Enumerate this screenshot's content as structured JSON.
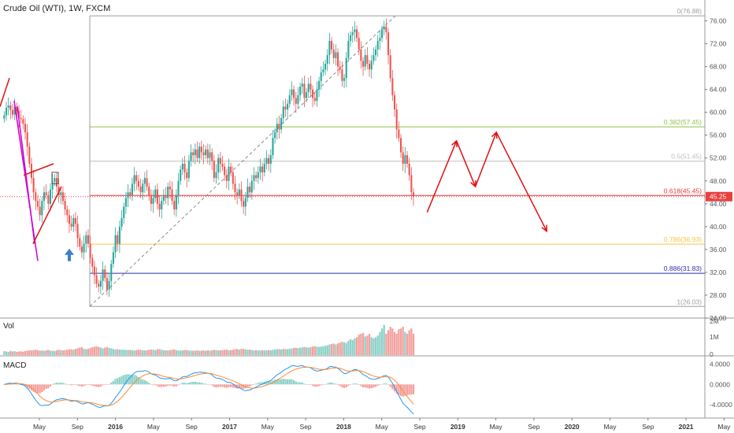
{
  "header": {
    "title": "Crude Oil (WTI), 1W, FXCM"
  },
  "volume_pane": {
    "label": "Vol"
  },
  "macd_pane": {
    "label": "MACD"
  },
  "colors": {
    "up": "#26a69a",
    "down": "#ef5350",
    "up_alpha": "#8dd1c9",
    "down_alpha": "#f3a09d",
    "arrow": "#e01010",
    "pitchfork": "#d000d0",
    "signal_arrow": "#3b7fd0",
    "price_tag": "#e84040",
    "macd_line": "#2196f3",
    "signal_line": "#ff8a30"
  },
  "icons": {
    "signal_arrow": "up-arrow-icon"
  },
  "chart_data": {
    "type": "candlestick",
    "price_axis": {
      "ylim": [
        24,
        78
      ],
      "ticks": [
        "76.00",
        "72.00",
        "68.00",
        "64.00",
        "60.00",
        "56.00",
        "52.00",
        "48.00",
        "44.00",
        "40.00",
        "36.00",
        "32.00",
        "28.00",
        "24.00"
      ]
    },
    "time_axis": {
      "labels": [
        "May",
        "Sep",
        "2016",
        "May",
        "Sep",
        "2017",
        "May",
        "Sep",
        "2018",
        "May",
        "Sep",
        "2019",
        "May",
        "Sep",
        "2020",
        "May",
        "Sep",
        "2021",
        "May"
      ]
    },
    "current_price": "45.25",
    "fib_levels": [
      {
        "label": "0(76.88)",
        "value": 76.88,
        "color": "#9e9e9e"
      },
      {
        "label": "0.382(57.45)",
        "value": 57.45,
        "color": "#8bc34a"
      },
      {
        "label": "0.5(51.45)",
        "value": 51.45,
        "color": "#bdbdbd"
      },
      {
        "label": "0.618(45.45)",
        "value": 45.45,
        "color": "#e53935"
      },
      {
        "label": "0.786(36.93)",
        "value": 36.93,
        "color": "#f6c445"
      },
      {
        "label": "0.886(31.83)",
        "value": 31.83,
        "color": "#2b2bb0"
      },
      {
        "label": "1(26.03)",
        "value": 26.03,
        "color": "#9e9e9e"
      }
    ],
    "weekly_closes": [
      59.5,
      60.8,
      61.2,
      60.4,
      59.6,
      61.0,
      60.2,
      59.0,
      58.8,
      58.0,
      56.5,
      54.0,
      51.0,
      48.5,
      46.0,
      44.5,
      43.5,
      42.0,
      44.5,
      46.0,
      45.5,
      44.0,
      46.5,
      47.8,
      48.5,
      47.0,
      45.5,
      46.0,
      44.5,
      43.0,
      42.0,
      40.5,
      40.0,
      41.5,
      40.5,
      38.0,
      36.5,
      35.5,
      37.0,
      38.5,
      37.0,
      34.5,
      33.0,
      31.5,
      30.0,
      29.5,
      30.5,
      32.5,
      31.0,
      29.0,
      30.5,
      33.5,
      35.5,
      38.5,
      37.0,
      40.0,
      41.5,
      43.5,
      45.0,
      46.0,
      45.5,
      47.5,
      49.0,
      48.0,
      47.0,
      46.0,
      47.5,
      48.5,
      47.0,
      45.5,
      44.0,
      45.0,
      46.5,
      44.0,
      43.0,
      44.5,
      45.5,
      45.0,
      47.0,
      46.5,
      44.5,
      43.0,
      45.5,
      48.0,
      50.0,
      51.0,
      49.5,
      48.5,
      51.5,
      53.0,
      52.5,
      53.5,
      52.0,
      54.0,
      53.0,
      52.5,
      53.5,
      52.0,
      53.0,
      51.5,
      48.5,
      49.5,
      52.0,
      51.0,
      50.5,
      49.0,
      48.0,
      50.5,
      49.5,
      47.5,
      46.0,
      45.5,
      46.5,
      44.5,
      43.5,
      45.0,
      47.0,
      46.0,
      48.0,
      49.0,
      48.5,
      49.5,
      50.5,
      49.5,
      51.0,
      52.0,
      51.0,
      52.5,
      55.5,
      56.5,
      58.0,
      57.0,
      59.0,
      61.0,
      60.5,
      61.5,
      63.0,
      64.0,
      62.5,
      61.5,
      63.0,
      64.5,
      65.0,
      62.5,
      63.5,
      65.0,
      64.0,
      62.5,
      62.0,
      64.0,
      65.5,
      67.0,
      67.5,
      68.5,
      70.0,
      72.5,
      71.0,
      69.5,
      70.5,
      68.0,
      67.5,
      65.5,
      66.0,
      69.5,
      72.5,
      73.5,
      74.0,
      74.5,
      73.0,
      71.0,
      69.0,
      68.0,
      70.0,
      68.5,
      67.5,
      69.0,
      70.0,
      71.0,
      72.5,
      73.0,
      74.5,
      75.0,
      74.0,
      70.0,
      66.0,
      63.0,
      60.5,
      57.0,
      55.5,
      53.0,
      51.0,
      52.5,
      51.0,
      49.0,
      46.0,
      45.25
    ],
    "volume_series": [
      0.22,
      0.2,
      0.18,
      0.24,
      0.2,
      0.22,
      0.18,
      0.2,
      0.21,
      0.19,
      0.23,
      0.25,
      0.27,
      0.26,
      0.28,
      0.3,
      0.27,
      0.25,
      0.26,
      0.24,
      0.27,
      0.29,
      0.25,
      0.24,
      0.23,
      0.27,
      0.3,
      0.28,
      0.26,
      0.28,
      0.3,
      0.32,
      0.33,
      0.3,
      0.35,
      0.38,
      0.42,
      0.45,
      0.36,
      0.33,
      0.35,
      0.4,
      0.44,
      0.47,
      0.5,
      0.46,
      0.42,
      0.38,
      0.42,
      0.45,
      0.4,
      0.38,
      0.34,
      0.32,
      0.33,
      0.31,
      0.3,
      0.31,
      0.28,
      0.3,
      0.29,
      0.27,
      0.26,
      0.28,
      0.3,
      0.29,
      0.27,
      0.26,
      0.27,
      0.3,
      0.32,
      0.3,
      0.28,
      0.33,
      0.34,
      0.3,
      0.28,
      0.27,
      0.26,
      0.28,
      0.3,
      0.32,
      0.28,
      0.26,
      0.25,
      0.27,
      0.29,
      0.28,
      0.26,
      0.25,
      0.24,
      0.25,
      0.27,
      0.24,
      0.25,
      0.26,
      0.24,
      0.27,
      0.25,
      0.26,
      0.3,
      0.28,
      0.26,
      0.27,
      0.28,
      0.3,
      0.31,
      0.27,
      0.28,
      0.3,
      0.33,
      0.34,
      0.31,
      0.35,
      0.36,
      0.32,
      0.3,
      0.31,
      0.28,
      0.27,
      0.28,
      0.26,
      0.27,
      0.28,
      0.26,
      0.27,
      0.28,
      0.27,
      0.3,
      0.32,
      0.33,
      0.34,
      0.32,
      0.35,
      0.34,
      0.33,
      0.36,
      0.37,
      0.4,
      0.41,
      0.39,
      0.42,
      0.43,
      0.46,
      0.44,
      0.42,
      0.45,
      0.48,
      0.5,
      0.47,
      0.46,
      0.48,
      0.5,
      0.52,
      0.55,
      0.6,
      0.62,
      0.65,
      0.6,
      0.66,
      0.7,
      0.75,
      0.72,
      0.68,
      0.8,
      0.9,
      0.85,
      0.95,
      1.0,
      1.15,
      1.2,
      1.25,
      1.05,
      1.1,
      1.2,
      1.0,
      0.95,
      1.0,
      1.1,
      1.3,
      1.5,
      1.7,
      1.2,
      1.4,
      1.6,
      1.5,
      1.3,
      1.2,
      1.45,
      1.5,
      1.6,
      1.3,
      1.2,
      1.4,
      1.5,
      1.2
    ],
    "volume_axis": {
      "ticks": [
        "2M",
        "1M",
        "0"
      ]
    },
    "macd_axis": {
      "ylim": [
        -6.5,
        5.5
      ],
      "ticks": [
        "4.0000",
        "0.0000",
        "-4.0000"
      ]
    },
    "projection_path": [
      {
        "x_week": 202,
        "price": 42.5
      },
      {
        "x_week": 216,
        "price": 55.0
      },
      {
        "x_week": 225,
        "price": 47.0
      },
      {
        "x_week": 235,
        "price": 56.5
      },
      {
        "x_week": 259,
        "price": 39.2
      }
    ]
  }
}
